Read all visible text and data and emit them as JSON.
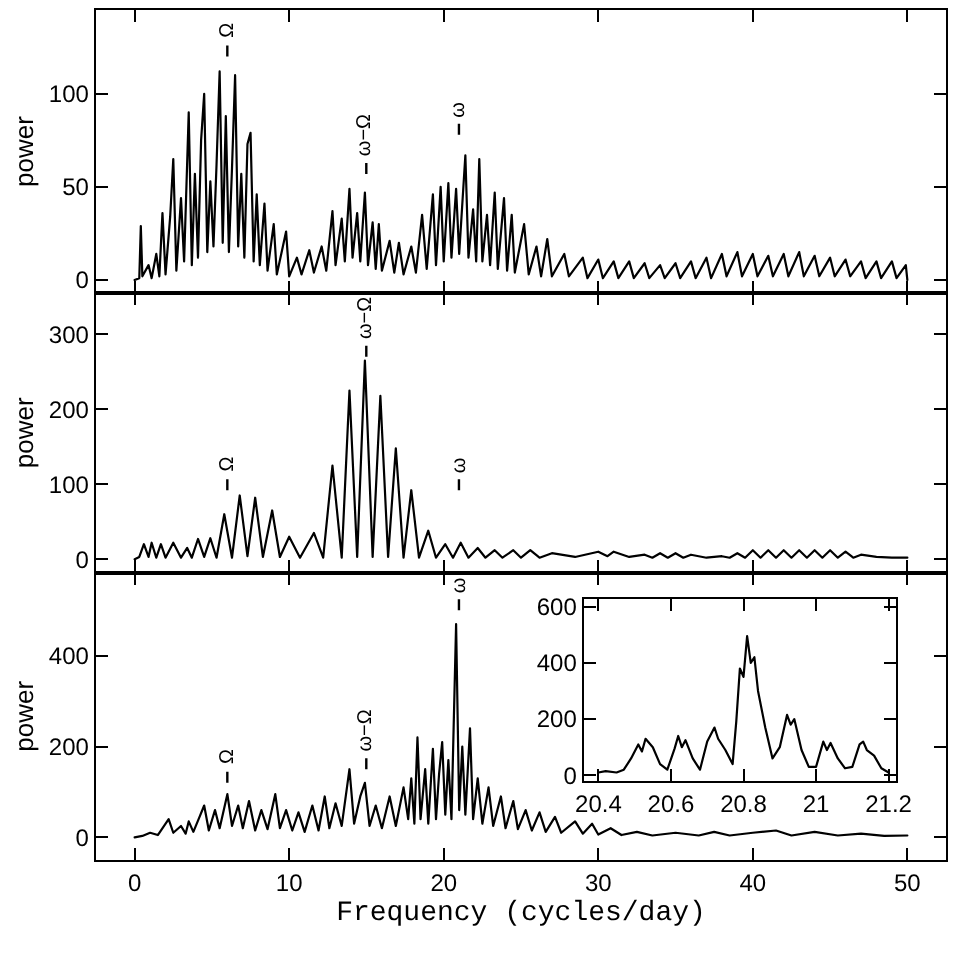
{
  "chart_data": [
    {
      "type": "line",
      "ylabel": "power",
      "xlim": [
        -2.5,
        52.5
      ],
      "xticks": [
        0,
        10,
        20,
        30,
        40,
        50
      ],
      "ylim": [
        -7,
        145
      ],
      "yticks": [
        0,
        50,
        100
      ],
      "tick_labels": "y",
      "annotations": [
        "Ω",
        "ω−Ω",
        "ω"
      ],
      "x": [
        0,
        0.3,
        0.4,
        0.5,
        0.9,
        1.1,
        1.4,
        1.6,
        1.8,
        2.0,
        2.3,
        2.5,
        2.7,
        3.0,
        3.2,
        3.5,
        3.7,
        3.9,
        4.1,
        4.3,
        4.5,
        4.7,
        4.9,
        5.1,
        5.3,
        5.5,
        5.7,
        5.9,
        6.1,
        6.3,
        6.5,
        6.7,
        6.9,
        7.1,
        7.3,
        7.5,
        7.7,
        7.9,
        8.1,
        8.4,
        8.6,
        9.0,
        9.2,
        9.8,
        10.0,
        10.5,
        10.8,
        11.3,
        11.6,
        12.1,
        12.4,
        12.8,
        13.0,
        13.4,
        13.6,
        13.9,
        14.1,
        14.4,
        14.6,
        14.9,
        15.1,
        15.4,
        15.6,
        15.8,
        16.0,
        16.5,
        16.8,
        17.1,
        17.4,
        17.9,
        18.2,
        18.6,
        18.9,
        19.3,
        19.5,
        19.8,
        20.0,
        20.3,
        20.5,
        20.8,
        21.0,
        21.4,
        21.6,
        21.9,
        22.1,
        22.3,
        22.5,
        22.8,
        23.0,
        23.3,
        23.5,
        23.9,
        24.1,
        24.4,
        24.6,
        25.2,
        25.5,
        26.0,
        26.3,
        26.7,
        27.0,
        27.8,
        28.1,
        29.0,
        29.3,
        30.0,
        30.3,
        31.0,
        31.3,
        32.0,
        32.3,
        33.0,
        33.3,
        34.0,
        34.3,
        35.0,
        35.3,
        36.0,
        36.3,
        37.0,
        37.3,
        38.0,
        38.3,
        39.0,
        39.3,
        40.0,
        40.3,
        41.0,
        41.3,
        42.0,
        42.3,
        43.0,
        43.3,
        44.0,
        44.3,
        45.0,
        45.3,
        46.0,
        46.3,
        47.0,
        47.3,
        48.0,
        48.3,
        49.0,
        49.3,
        49.9,
        50
      ],
      "series": [
        {
          "color": "#000000",
          "values": [
            0,
            1,
            29,
            2,
            8,
            1,
            14,
            2,
            36,
            3,
            34,
            65,
            5,
            44,
            10,
            90,
            8,
            57,
            12,
            75,
            100,
            15,
            53,
            18,
            62,
            112,
            20,
            88,
            15,
            60,
            110,
            18,
            57,
            12,
            73,
            79,
            10,
            46,
            8,
            41,
            5,
            30,
            3,
            26,
            2,
            12,
            3,
            16,
            4,
            18,
            5,
            37,
            8,
            33,
            10,
            49,
            12,
            36,
            10,
            47,
            8,
            31,
            6,
            30,
            5,
            21,
            4,
            20,
            3,
            18,
            4,
            35,
            6,
            46,
            8,
            50,
            10,
            52,
            12,
            49,
            14,
            67,
            12,
            38,
            10,
            65,
            10,
            35,
            8,
            47,
            6,
            44,
            5,
            35,
            4,
            30,
            3,
            18,
            2,
            22,
            2,
            14,
            2,
            12,
            1,
            11,
            1,
            10,
            1,
            10,
            1,
            9,
            1,
            8,
            1,
            9,
            1,
            10,
            1,
            12,
            1,
            14,
            2,
            15,
            2,
            14,
            2,
            13,
            2,
            14,
            2,
            15,
            2,
            13,
            2,
            12,
            2,
            11,
            2,
            10,
            1,
            10,
            1,
            10,
            1,
            8,
            0
          ]
        }
      ]
    },
    {
      "type": "line",
      "ylabel": "power",
      "xlim": [
        -2.5,
        52.5
      ],
      "xticks": [
        0,
        10,
        20,
        30,
        40,
        50
      ],
      "ylim": [
        -18,
        355
      ],
      "yticks": [
        0,
        100,
        200,
        300
      ],
      "tick_labels": "y",
      "annotations": [
        "Ω",
        "ω−Ω",
        "ω"
      ],
      "x": [
        0,
        0.3,
        0.6,
        0.9,
        1.1,
        1.4,
        1.7,
        2.0,
        2.5,
        3.0,
        3.4,
        3.7,
        4.1,
        4.5,
        4.9,
        5.3,
        5.8,
        6.3,
        6.8,
        7.3,
        7.8,
        8.3,
        8.9,
        9.4,
        10.0,
        10.7,
        11.6,
        12.2,
        12.8,
        13.4,
        13.9,
        14.4,
        14.9,
        15.4,
        15.9,
        16.4,
        16.9,
        17.4,
        17.9,
        18.4,
        19.0,
        19.5,
        20.1,
        20.6,
        21.1,
        21.6,
        22.2,
        22.7,
        23.3,
        23.8,
        24.5,
        25.0,
        25.6,
        26.2,
        27.0,
        28.5,
        30.0,
        30.6,
        31.0,
        32.0,
        33.0,
        33.5,
        34.0,
        34.5,
        35.0,
        35.5,
        36.0,
        37.0,
        38.0,
        38.5,
        39.0,
        39.5,
        40.0,
        40.5,
        41.0,
        41.5,
        42.0,
        42.5,
        43.0,
        43.5,
        44.0,
        44.5,
        45.0,
        45.5,
        46.0,
        46.5,
        47.0,
        48.0,
        49.0,
        50.0
      ],
      "series": [
        {
          "color": "#000000",
          "values": [
            0,
            3,
            20,
            3,
            22,
            2,
            20,
            2,
            22,
            2,
            15,
            2,
            27,
            3,
            28,
            2,
            60,
            2,
            85,
            4,
            82,
            3,
            65,
            3,
            30,
            2,
            35,
            2,
            125,
            2,
            225,
            3,
            265,
            3,
            218,
            3,
            148,
            2,
            92,
            2,
            38,
            2,
            20,
            2,
            22,
            2,
            15,
            2,
            12,
            2,
            12,
            2,
            12,
            2,
            8,
            3,
            10,
            4,
            10,
            3,
            6,
            2,
            8,
            2,
            8,
            2,
            6,
            2,
            4,
            2,
            8,
            2,
            12,
            2,
            12,
            2,
            12,
            2,
            12,
            2,
            12,
            2,
            12,
            2,
            10,
            2,
            6,
            3,
            2,
            2
          ]
        }
      ]
    },
    {
      "type": "line",
      "ylabel": "power",
      "xlabel": "Frequency (cycles/day)",
      "xlim": [
        -2.5,
        52.5
      ],
      "xticks": [
        0,
        10,
        20,
        30,
        40,
        50
      ],
      "ylim": [
        -50,
        583
      ],
      "yticks": [
        0,
        200,
        400
      ],
      "annotations": [
        "Ω",
        "ω−Ω",
        "ω"
      ],
      "x": [
        0,
        0.5,
        1,
        1.5,
        2.2,
        2.5,
        3,
        3.3,
        3.5,
        3.8,
        4.2,
        4.5,
        4.8,
        5.2,
        5.5,
        6.0,
        6.3,
        6.7,
        7.0,
        7.4,
        7.8,
        8.2,
        8.6,
        9.1,
        9.4,
        9.8,
        10.2,
        10.6,
        11.0,
        11.5,
        11.9,
        12.3,
        12.6,
        13.0,
        13.4,
        13.9,
        14.2,
        14.6,
        14.9,
        15.2,
        15.6,
        16.0,
        16.5,
        16.9,
        17.4,
        17.7,
        17.9,
        18.1,
        18.3,
        18.5,
        18.8,
        19.0,
        19.3,
        19.5,
        19.7,
        19.9,
        20.1,
        20.3,
        20.5,
        20.8,
        21.0,
        21.2,
        21.4,
        21.7,
        21.9,
        22.2,
        22.5,
        22.9,
        23.2,
        23.7,
        24.0,
        24.5,
        24.8,
        25.3,
        25.7,
        26.2,
        26.6,
        27.2,
        27.6,
        28.5,
        29.0,
        29.6,
        30.0,
        30.8,
        31.5,
        32.5,
        33.5,
        35.0,
        36.5,
        37.5,
        38.5,
        40.0,
        41.5,
        42.5,
        44.0,
        45.5,
        47.0,
        48.5,
        50.0
      ],
      "series": [
        {
          "color": "#000000",
          "values": [
            0,
            3,
            10,
            5,
            40,
            10,
            25,
            8,
            35,
            12,
            45,
            70,
            15,
            60,
            20,
            95,
            25,
            70,
            20,
            80,
            15,
            60,
            18,
            95,
            20,
            60,
            15,
            55,
            12,
            70,
            15,
            90,
            20,
            75,
            25,
            150,
            30,
            90,
            120,
            25,
            70,
            20,
            90,
            25,
            110,
            40,
            130,
            30,
            220,
            40,
            150,
            30,
            195,
            40,
            140,
            210,
            50,
            170,
            40,
            470,
            60,
            200,
            50,
            240,
            40,
            130,
            30,
            110,
            25,
            90,
            20,
            80,
            18,
            60,
            15,
            55,
            12,
            45,
            10,
            35,
            8,
            30,
            6,
            20,
            5,
            12,
            4,
            10,
            4,
            12,
            4,
            10,
            15,
            4,
            12,
            4,
            8,
            3,
            4
          ]
        }
      ]
    },
    {
      "type": "line",
      "xlim": [
        20.36,
        21.22
      ],
      "xticks": [
        20.4,
        20.6,
        20.8,
        21,
        21.2
      ],
      "ylim": [
        -20,
        627
      ],
      "yticks": [
        0,
        200,
        400,
        600
      ],
      "x": [
        20.4,
        20.42,
        20.45,
        20.47,
        20.49,
        20.51,
        20.52,
        20.53,
        20.55,
        20.57,
        20.59,
        20.61,
        20.62,
        20.63,
        20.64,
        20.66,
        20.68,
        20.7,
        20.72,
        20.73,
        20.75,
        20.77,
        20.78,
        20.79,
        20.8,
        20.81,
        20.82,
        20.83,
        20.84,
        20.86,
        20.88,
        20.9,
        20.92,
        20.93,
        20.94,
        20.96,
        20.98,
        21.0,
        21.02,
        21.03,
        21.04,
        21.06,
        21.08,
        21.1,
        21.12,
        21.13,
        21.14,
        21.16,
        21.18,
        21.2
      ],
      "series": [
        {
          "color": "#000000",
          "values": [
            10,
            15,
            10,
            20,
            60,
            110,
            85,
            130,
            100,
            40,
            20,
            95,
            140,
            100,
            125,
            60,
            20,
            120,
            170,
            130,
            90,
            40,
            190,
            380,
            350,
            495,
            400,
            420,
            300,
            170,
            60,
            100,
            215,
            180,
            200,
            90,
            30,
            30,
            120,
            90,
            115,
            60,
            25,
            30,
            110,
            120,
            90,
            70,
            25,
            10
          ]
        }
      ]
    }
  ]
}
